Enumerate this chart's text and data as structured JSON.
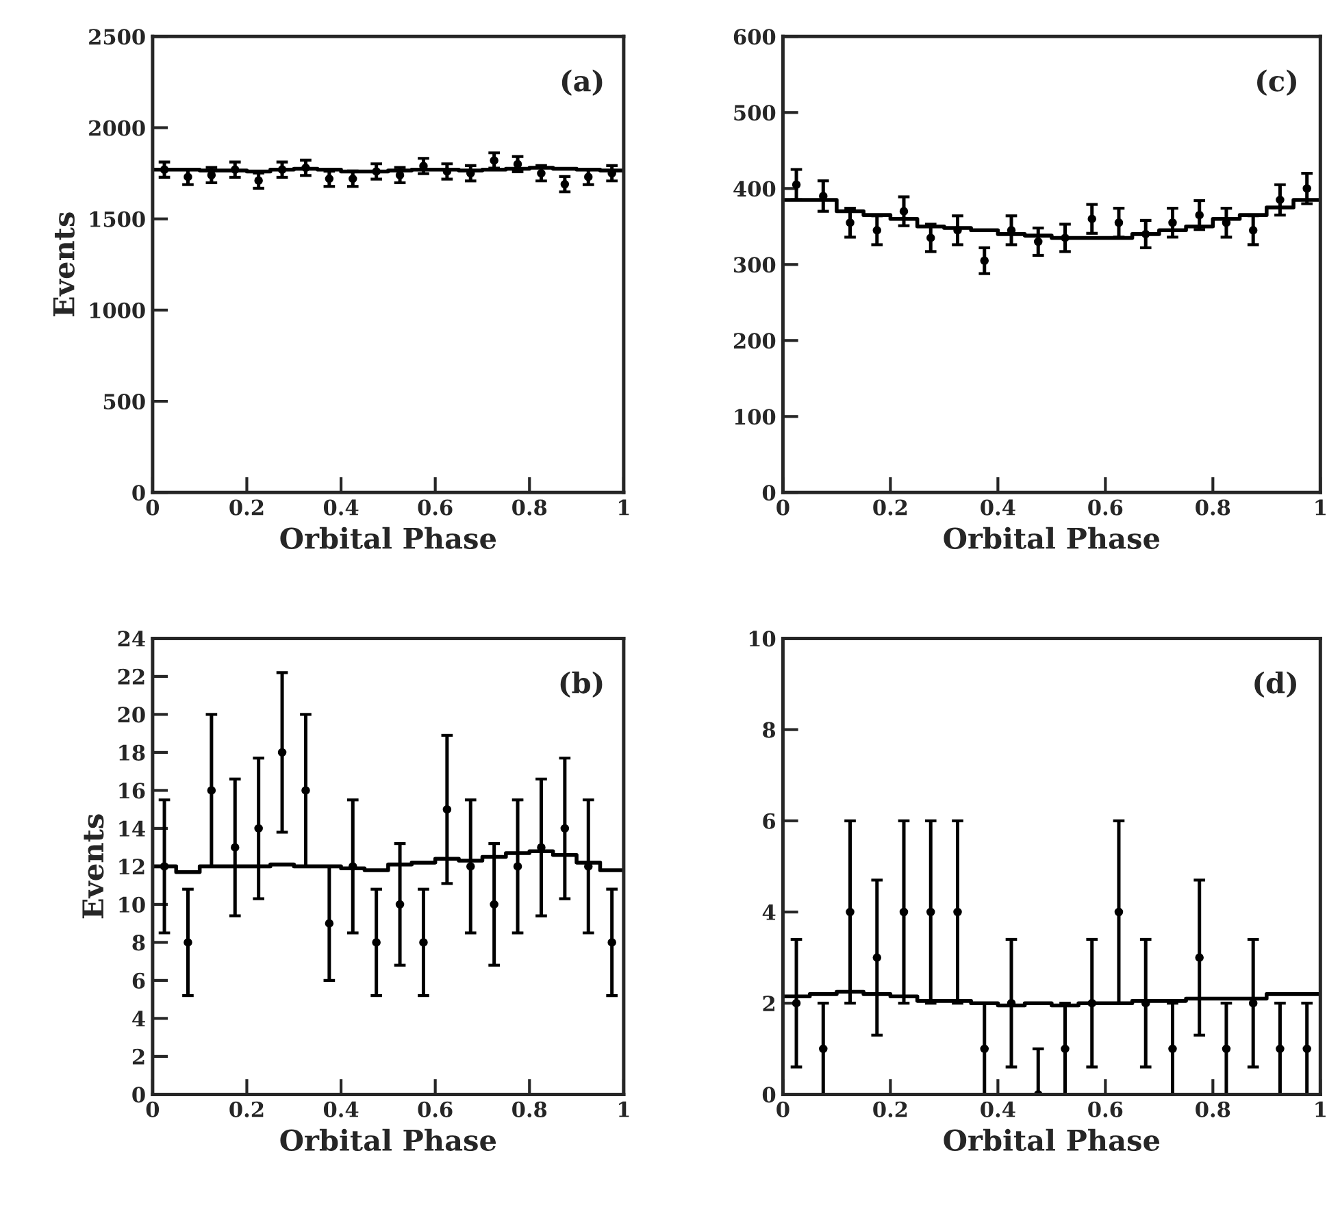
{
  "chart_data": [
    {
      "type": "scatter",
      "xlabel": "Orbital Phase",
      "ylabel": "Events",
      "annotations": [
        "(a)"
      ],
      "xlim": [
        0,
        1
      ],
      "xticks": [
        0,
        0.2,
        0.4,
        0.6,
        0.8,
        1
      ],
      "ylim": [
        0,
        2500
      ],
      "yticks": [
        0,
        500,
        1000,
        1500,
        2000,
        2500
      ],
      "grid": false,
      "legend": false,
      "x": [
        0.025,
        0.075,
        0.125,
        0.175,
        0.225,
        0.275,
        0.325,
        0.375,
        0.425,
        0.475,
        0.525,
        0.575,
        0.625,
        0.675,
        0.725,
        0.775,
        0.825,
        0.875,
        0.925,
        0.975
      ],
      "series": [
        {
          "marker": "circle",
          "color": "#000000",
          "values": [
            1770,
            1730,
            1740,
            1770,
            1710,
            1770,
            1780,
            1720,
            1720,
            1760,
            1740,
            1790,
            1760,
            1750,
            1820,
            1800,
            1750,
            1690,
            1730,
            1750
          ],
          "errors": [
            42,
            42,
            42,
            42,
            42,
            42,
            42,
            42,
            42,
            42,
            42,
            42,
            42,
            42,
            42,
            42,
            42,
            42,
            42,
            42
          ]
        },
        {
          "type": "step",
          "color": "#000000",
          "x": [
            0,
            0.05,
            0.1,
            0.15,
            0.2,
            0.25,
            0.3,
            0.35,
            0.4,
            0.45,
            0.5,
            0.55,
            0.6,
            0.65,
            0.7,
            0.75,
            0.8,
            0.85,
            0.9,
            0.95,
            1
          ],
          "values": [
            1770,
            1770,
            1765,
            1765,
            1760,
            1770,
            1775,
            1770,
            1760,
            1760,
            1765,
            1770,
            1770,
            1765,
            1770,
            1775,
            1780,
            1775,
            1770,
            1765,
            1765
          ]
        }
      ]
    },
    {
      "type": "scatter",
      "xlabel": "Orbital Phase",
      "annotations": [
        "(c)"
      ],
      "xlim": [
        0,
        1
      ],
      "xticks": [
        0,
        0.2,
        0.4,
        0.6,
        0.8,
        1
      ],
      "ylim": [
        0,
        600
      ],
      "yticks": [
        0,
        100,
        200,
        300,
        400,
        500,
        600
      ],
      "grid": false,
      "legend": false,
      "x": [
        0.025,
        0.075,
        0.125,
        0.175,
        0.225,
        0.275,
        0.325,
        0.375,
        0.425,
        0.475,
        0.525,
        0.575,
        0.625,
        0.675,
        0.725,
        0.775,
        0.825,
        0.875,
        0.925,
        0.975
      ],
      "series": [
        {
          "marker": "circle",
          "color": "#000000",
          "values": [
            405,
            390,
            355,
            345,
            370,
            335,
            345,
            305,
            345,
            330,
            335,
            360,
            355,
            340,
            355,
            365,
            355,
            345,
            385,
            400
          ],
          "errors": [
            20,
            20,
            19,
            19,
            19,
            18,
            19,
            17,
            19,
            18,
            18,
            19,
            19,
            18,
            19,
            19,
            19,
            19,
            20,
            20
          ]
        },
        {
          "type": "step",
          "color": "#000000",
          "x": [
            0,
            0.05,
            0.1,
            0.15,
            0.2,
            0.25,
            0.3,
            0.35,
            0.4,
            0.45,
            0.5,
            0.55,
            0.6,
            0.65,
            0.7,
            0.75,
            0.8,
            0.85,
            0.9,
            0.95,
            1
          ],
          "values": [
            385,
            385,
            370,
            365,
            360,
            350,
            348,
            345,
            340,
            338,
            335,
            335,
            335,
            340,
            345,
            350,
            360,
            365,
            375,
            385,
            385
          ]
        }
      ]
    },
    {
      "type": "scatter",
      "xlabel": "Orbital Phase",
      "ylabel": "Events",
      "annotations": [
        "(b)"
      ],
      "xlim": [
        0,
        1
      ],
      "xticks": [
        0,
        0.2,
        0.4,
        0.6,
        0.8,
        1
      ],
      "ylim": [
        0,
        24
      ],
      "yticks": [
        0,
        2,
        4,
        6,
        8,
        10,
        12,
        14,
        16,
        18,
        20,
        22,
        24
      ],
      "grid": false,
      "legend": false,
      "x": [
        0.025,
        0.075,
        0.125,
        0.175,
        0.225,
        0.275,
        0.325,
        0.375,
        0.425,
        0.475,
        0.525,
        0.575,
        0.625,
        0.675,
        0.725,
        0.775,
        0.825,
        0.875,
        0.925,
        0.975
      ],
      "series": [
        {
          "marker": "circle",
          "color": "#000000",
          "values": [
            12,
            8,
            16,
            13,
            14,
            18,
            16,
            9,
            12,
            8,
            10,
            8,
            15,
            12,
            10,
            12,
            13,
            14,
            12,
            8
          ],
          "errors": [
            3.5,
            2.8,
            4,
            3.6,
            3.7,
            4.2,
            4,
            3,
            3.5,
            2.8,
            3.2,
            2.8,
            3.9,
            3.5,
            3.2,
            3.5,
            3.6,
            3.7,
            3.5,
            2.8
          ]
        },
        {
          "type": "step",
          "color": "#000000",
          "x": [
            0,
            0.05,
            0.1,
            0.15,
            0.2,
            0.25,
            0.3,
            0.35,
            0.4,
            0.45,
            0.5,
            0.55,
            0.6,
            0.65,
            0.7,
            0.75,
            0.8,
            0.85,
            0.9,
            0.95,
            1
          ],
          "values": [
            12,
            11.7,
            12,
            12,
            12,
            12.1,
            12,
            12,
            11.9,
            11.8,
            12.1,
            12.2,
            12.4,
            12.3,
            12.5,
            12.7,
            12.8,
            12.6,
            12.2,
            11.8,
            11.8
          ]
        }
      ]
    },
    {
      "type": "scatter",
      "xlabel": "Orbital Phase",
      "annotations": [
        "(d)"
      ],
      "xlim": [
        0,
        1
      ],
      "xticks": [
        0,
        0.2,
        0.4,
        0.6,
        0.8,
        1
      ],
      "ylim": [
        0,
        10
      ],
      "yticks": [
        0,
        2,
        4,
        6,
        8,
        10
      ],
      "grid": false,
      "legend": false,
      "x": [
        0.025,
        0.075,
        0.125,
        0.175,
        0.225,
        0.275,
        0.325,
        0.375,
        0.425,
        0.475,
        0.525,
        0.575,
        0.625,
        0.675,
        0.725,
        0.775,
        0.825,
        0.875,
        0.925,
        0.975
      ],
      "series": [
        {
          "marker": "circle",
          "color": "#000000",
          "values": [
            2,
            1,
            4,
            3,
            4,
            4,
            4,
            1,
            2,
            0,
            1,
            2,
            4,
            2,
            1,
            3,
            1,
            2,
            1,
            1
          ],
          "errors": [
            1.4,
            1,
            2,
            1.7,
            2,
            2,
            2,
            1,
            1.4,
            [
              0,
              1
            ],
            1,
            1.4,
            2,
            1.4,
            1,
            1.7,
            1,
            1.4,
            1,
            1
          ]
        },
        {
          "type": "step",
          "color": "#000000",
          "x": [
            0,
            0.05,
            0.1,
            0.15,
            0.2,
            0.25,
            0.3,
            0.35,
            0.4,
            0.45,
            0.5,
            0.55,
            0.6,
            0.65,
            0.7,
            0.75,
            0.8,
            0.85,
            0.9,
            0.95,
            1
          ],
          "values": [
            2.15,
            2.2,
            2.25,
            2.2,
            2.15,
            2.05,
            2.05,
            2.0,
            1.95,
            2.0,
            1.95,
            2.0,
            2.0,
            2.05,
            2.05,
            2.1,
            2.1,
            2.1,
            2.2,
            2.2,
            2.2
          ]
        }
      ]
    }
  ]
}
